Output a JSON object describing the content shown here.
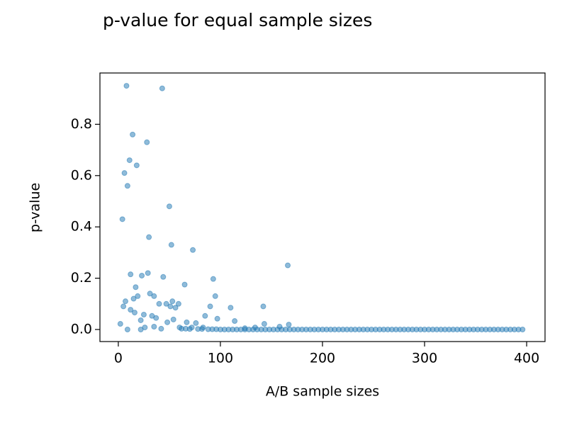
{
  "chart_data": {
    "type": "scatter",
    "title": "p-value for equal sample sizes",
    "x_label": "A/B sample sizes",
    "y_label": "p-value",
    "color": "#1f77b4",
    "x": [
      8,
      43,
      14,
      28,
      11,
      18,
      6,
      9,
      4,
      50,
      30,
      52,
      73,
      166,
      12,
      29,
      23,
      44,
      93,
      17,
      65,
      31,
      35,
      95,
      15,
      19,
      53,
      7,
      5,
      40,
      47,
      59,
      51,
      56,
      90,
      110,
      142,
      12,
      16,
      25,
      33,
      37,
      85,
      97,
      2,
      22,
      48,
      54,
      67,
      76,
      114,
      143,
      9,
      22,
      26,
      35,
      42,
      60,
      72,
      83,
      167,
      158,
      134,
      124,
      62,
      66,
      70,
      78,
      82,
      88,
      92,
      96,
      100,
      104,
      108,
      112,
      116,
      120,
      124,
      128,
      132,
      136,
      140,
      144,
      148,
      152,
      156,
      160,
      164,
      168,
      172,
      176,
      180,
      184,
      188,
      192,
      196,
      200,
      204,
      208,
      212,
      216,
      220,
      224,
      228,
      232,
      236,
      240,
      244,
      248,
      252,
      256,
      260,
      264,
      268,
      272,
      276,
      280,
      284,
      288,
      292,
      296,
      300,
      304,
      308,
      312,
      316,
      320,
      324,
      328,
      332,
      336,
      340,
      344,
      348,
      352,
      356,
      360,
      364,
      368,
      372,
      376,
      380,
      384,
      388,
      392,
      396
    ],
    "values": [
      0.95,
      0.94,
      0.76,
      0.73,
      0.66,
      0.64,
      0.61,
      0.56,
      0.43,
      0.48,
      0.36,
      0.33,
      0.31,
      0.25,
      0.215,
      0.22,
      0.21,
      0.205,
      0.197,
      0.165,
      0.175,
      0.14,
      0.13,
      0.13,
      0.12,
      0.13,
      0.11,
      0.11,
      0.09,
      0.1,
      0.1,
      0.1,
      0.09,
      0.085,
      0.09,
      0.085,
      0.09,
      0.077,
      0.066,
      0.058,
      0.053,
      0.045,
      0.053,
      0.042,
      0.022,
      0.036,
      0.028,
      0.039,
      0.028,
      0.025,
      0.033,
      0.022,
      0,
      0,
      0.008,
      0.011,
      0.003,
      0.008,
      0.008,
      0.008,
      0.019,
      0.011,
      0.008,
      0.005,
      0.003,
      0.003,
      0.002,
      0.002,
      0.002,
      0.001,
      0.001,
      0.001,
      0,
      0,
      0,
      0,
      0,
      0,
      0,
      0,
      0,
      0,
      0,
      0,
      0,
      0,
      0,
      0,
      0,
      0,
      0,
      0,
      0,
      0,
      0,
      0,
      0,
      0,
      0,
      0,
      0,
      0,
      0,
      0,
      0,
      0,
      0,
      0,
      0,
      0,
      0,
      0,
      0,
      0,
      0,
      0,
      0,
      0,
      0,
      0,
      0,
      0,
      0,
      0,
      0,
      0,
      0,
      0,
      0,
      0,
      0,
      0,
      0,
      0,
      0,
      0,
      0,
      0,
      0,
      0,
      0,
      0,
      0,
      0,
      0,
      0,
      0
    ],
    "xlim": [
      -18,
      418
    ],
    "xticks": [
      0,
      100,
      200,
      300,
      400
    ],
    "ylim": [
      -0.047,
      1.0
    ],
    "yticks": [
      {
        "value": 0,
        "label": "0.0"
      },
      0.2,
      0.4,
      0.6,
      0.8
    ]
  }
}
